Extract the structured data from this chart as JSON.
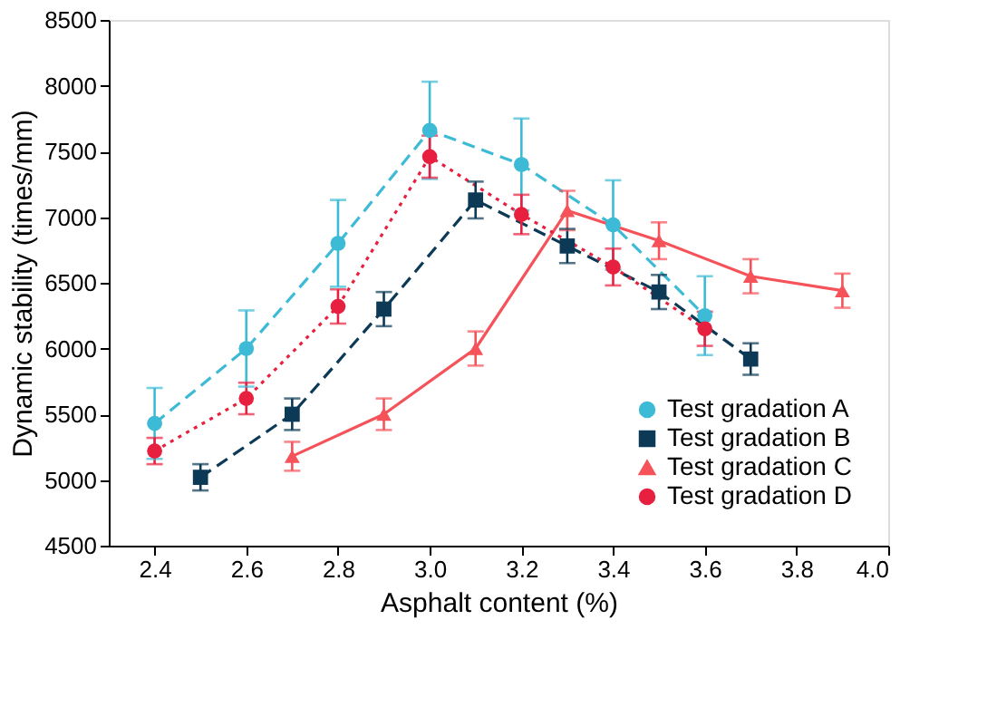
{
  "chart_data": {
    "type": "line",
    "xlabel": "Asphalt content (%)",
    "ylabel": "Dynamic stability (times/mm)",
    "xlim": [
      2.3,
      4.0
    ],
    "xticks": [
      {
        "value": 2.4,
        "label": "2.4"
      },
      {
        "value": 2.6,
        "label": "2.6"
      },
      {
        "value": 2.8,
        "label": "2.8"
      },
      {
        "value": 3.0,
        "label": "3.0"
      },
      {
        "value": 3.2,
        "label": "3.2"
      },
      {
        "value": 3.4,
        "label": "3.4"
      },
      {
        "value": 3.6,
        "label": "3.6"
      },
      {
        "value": 3.8,
        "label": "3.8"
      },
      {
        "value": 4.0,
        "label": "4.0"
      }
    ],
    "ylim": [
      4500,
      8500
    ],
    "yticks": [
      4500,
      5000,
      5500,
      6000,
      6500,
      7000,
      7500,
      8000,
      8500
    ],
    "grid": false,
    "legend": "bottom right",
    "series": [
      {
        "name": "Test gradation A",
        "color": "#3dbbd6",
        "marker": "circle",
        "line_style": "dashed",
        "x": [
          2.4,
          2.6,
          2.8,
          3.0,
          3.2,
          3.4,
          3.6
        ],
        "values": [
          5430,
          6000,
          6800,
          7660,
          7400,
          6940,
          6250
        ],
        "errors": [
          270,
          290,
          330,
          370,
          350,
          340,
          300
        ]
      },
      {
        "name": "Test gradation B",
        "color": "#0c3a56",
        "marker": "square",
        "line_style": "dashed",
        "x": [
          2.5,
          2.7,
          2.9,
          3.1,
          3.3,
          3.5,
          3.7
        ],
        "values": [
          5020,
          5500,
          6300,
          7130,
          6780,
          6430,
          5920
        ],
        "errors": [
          100,
          120,
          130,
          140,
          130,
          130,
          120
        ]
      },
      {
        "name": "Test gradation C",
        "color": "#f5525a",
        "marker": "triangle",
        "line_style": "solid",
        "x": [
          2.7,
          2.9,
          3.1,
          3.3,
          3.5,
          3.7,
          3.9
        ],
        "values": [
          5180,
          5500,
          6000,
          7050,
          6820,
          6550,
          6440
        ],
        "errors": [
          110,
          120,
          130,
          150,
          140,
          130,
          130
        ]
      },
      {
        "name": "Test gradation D",
        "color": "#e8203f",
        "marker": "circle",
        "line_style": "dotted",
        "x": [
          2.4,
          2.6,
          2.8,
          3.0,
          3.2,
          3.4,
          3.6
        ],
        "values": [
          5220,
          5620,
          6320,
          7460,
          7020,
          6620,
          6150
        ],
        "errors": [
          100,
          120,
          130,
          160,
          150,
          140,
          130
        ]
      }
    ]
  }
}
